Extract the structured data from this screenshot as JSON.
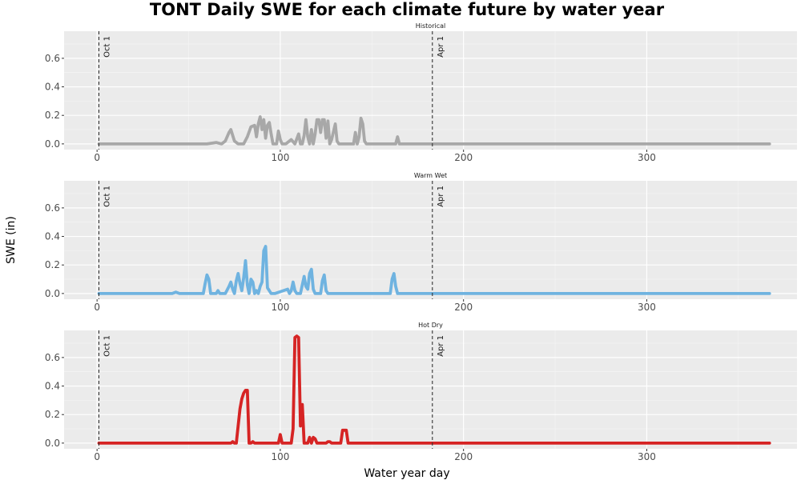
{
  "chart_data": {
    "type": "line",
    "title": "TONT Daily SWE for each climate future by water year",
    "xlabel": "Water year day",
    "ylabel": "SWE (in)",
    "xlim": [
      -18,
      382
    ],
    "ylim": [
      -0.04,
      0.79
    ],
    "x_ticks": [
      0,
      100,
      200,
      300
    ],
    "y_ticks": [
      0.0,
      0.2,
      0.4,
      0.6
    ],
    "x_tick_labels": [
      "0",
      "100",
      "200",
      "300"
    ],
    "y_tick_labels": [
      "0.0",
      "0.2",
      "0.4",
      "0.6"
    ],
    "grid": true,
    "legend": "none",
    "reference_lines": [
      {
        "x": 1,
        "label": "Oct 1"
      },
      {
        "x": 183,
        "label": "Apr 1"
      }
    ],
    "panels": [
      {
        "name": "Historical",
        "color": "#a8a8a8",
        "x": [
          1,
          60,
          65,
          68,
          70,
          72,
          73,
          75,
          77,
          80,
          82,
          84,
          86,
          87,
          88,
          89,
          90,
          91,
          92,
          93,
          94,
          95,
          96,
          98,
          99,
          100,
          101,
          103,
          106,
          108,
          110,
          111,
          112,
          113,
          114,
          115,
          116,
          117,
          118,
          119,
          120,
          121,
          122,
          123,
          124,
          125,
          126,
          127,
          128,
          130,
          131,
          132,
          133,
          134,
          136,
          138,
          140,
          141,
          142,
          143,
          144,
          145,
          146,
          147,
          148,
          150,
          163,
          164,
          165,
          166,
          367
        ],
        "y": [
          0.0,
          0.0,
          0.01,
          0.0,
          0.02,
          0.08,
          0.1,
          0.02,
          0.0,
          0.0,
          0.05,
          0.12,
          0.13,
          0.05,
          0.14,
          0.19,
          0.1,
          0.17,
          0.04,
          0.13,
          0.15,
          0.07,
          0.0,
          0.0,
          0.09,
          0.03,
          0.0,
          0.0,
          0.03,
          0.0,
          0.07,
          0.0,
          0.0,
          0.06,
          0.17,
          0.05,
          0.0,
          0.1,
          0.0,
          0.07,
          0.17,
          0.17,
          0.08,
          0.17,
          0.17,
          0.04,
          0.16,
          0.0,
          0.03,
          0.14,
          0.02,
          0.0,
          0.0,
          0.0,
          0.0,
          0.0,
          0.0,
          0.08,
          0.0,
          0.05,
          0.18,
          0.14,
          0.02,
          0.0,
          0.0,
          0.0,
          0.0,
          0.05,
          0.0,
          0.0,
          0.0
        ]
      },
      {
        "name": "Warm Wet",
        "color": "#6fb3e0",
        "x": [
          1,
          41,
          43,
          45,
          58,
          59,
          60,
          61,
          62,
          64,
          65,
          66,
          67,
          69,
          70,
          72,
          73,
          74,
          75,
          76,
          77,
          78,
          79,
          80,
          81,
          82,
          83,
          84,
          85,
          86,
          87,
          88,
          89,
          90,
          91,
          92,
          93,
          95,
          97,
          104,
          105,
          106,
          107,
          108,
          109,
          110,
          111,
          113,
          114,
          115,
          116,
          117,
          118,
          119,
          120,
          122,
          123,
          124,
          125,
          126,
          127,
          160,
          161,
          162,
          163,
          164,
          367
        ],
        "y": [
          0.0,
          0.0,
          0.01,
          0.0,
          0.0,
          0.07,
          0.13,
          0.1,
          0.0,
          0.0,
          0.0,
          0.02,
          0.0,
          0.0,
          0.0,
          0.05,
          0.08,
          0.03,
          0.0,
          0.09,
          0.14,
          0.07,
          0.02,
          0.11,
          0.23,
          0.06,
          0.0,
          0.1,
          0.08,
          0.0,
          0.02,
          0.0,
          0.05,
          0.08,
          0.3,
          0.33,
          0.04,
          0.0,
          0.0,
          0.03,
          0.0,
          0.02,
          0.08,
          0.02,
          0.0,
          0.0,
          0.0,
          0.12,
          0.05,
          0.03,
          0.14,
          0.17,
          0.03,
          0.0,
          0.0,
          0.0,
          0.09,
          0.13,
          0.02,
          0.0,
          0.0,
          0.0,
          0.1,
          0.14,
          0.05,
          0.0,
          0.0
        ]
      },
      {
        "name": "Hot Dry",
        "color": "#d62424",
        "x": [
          1,
          73,
          74,
          75,
          76,
          77,
          78,
          79,
          80,
          81,
          82,
          83,
          84,
          85,
          86,
          87,
          99,
          100,
          101,
          102,
          106,
          107,
          108,
          109,
          110,
          111,
          112,
          113,
          114,
          115,
          116,
          117,
          118,
          119,
          120,
          122,
          124,
          125,
          126,
          127,
          128,
          133,
          134,
          135,
          136,
          137,
          138,
          367
        ],
        "y": [
          0.0,
          0.0,
          0.01,
          0.0,
          0.0,
          0.12,
          0.24,
          0.31,
          0.35,
          0.37,
          0.37,
          0.0,
          0.0,
          0.01,
          0.0,
          0.0,
          0.0,
          0.06,
          0.0,
          0.0,
          0.0,
          0.1,
          0.74,
          0.75,
          0.74,
          0.12,
          0.27,
          0.0,
          0.0,
          0.0,
          0.04,
          0.0,
          0.04,
          0.03,
          0.0,
          0.0,
          0.0,
          0.0,
          0.01,
          0.01,
          0.0,
          0.0,
          0.09,
          0.09,
          0.09,
          0.0,
          0.0,
          0.0
        ]
      }
    ]
  }
}
